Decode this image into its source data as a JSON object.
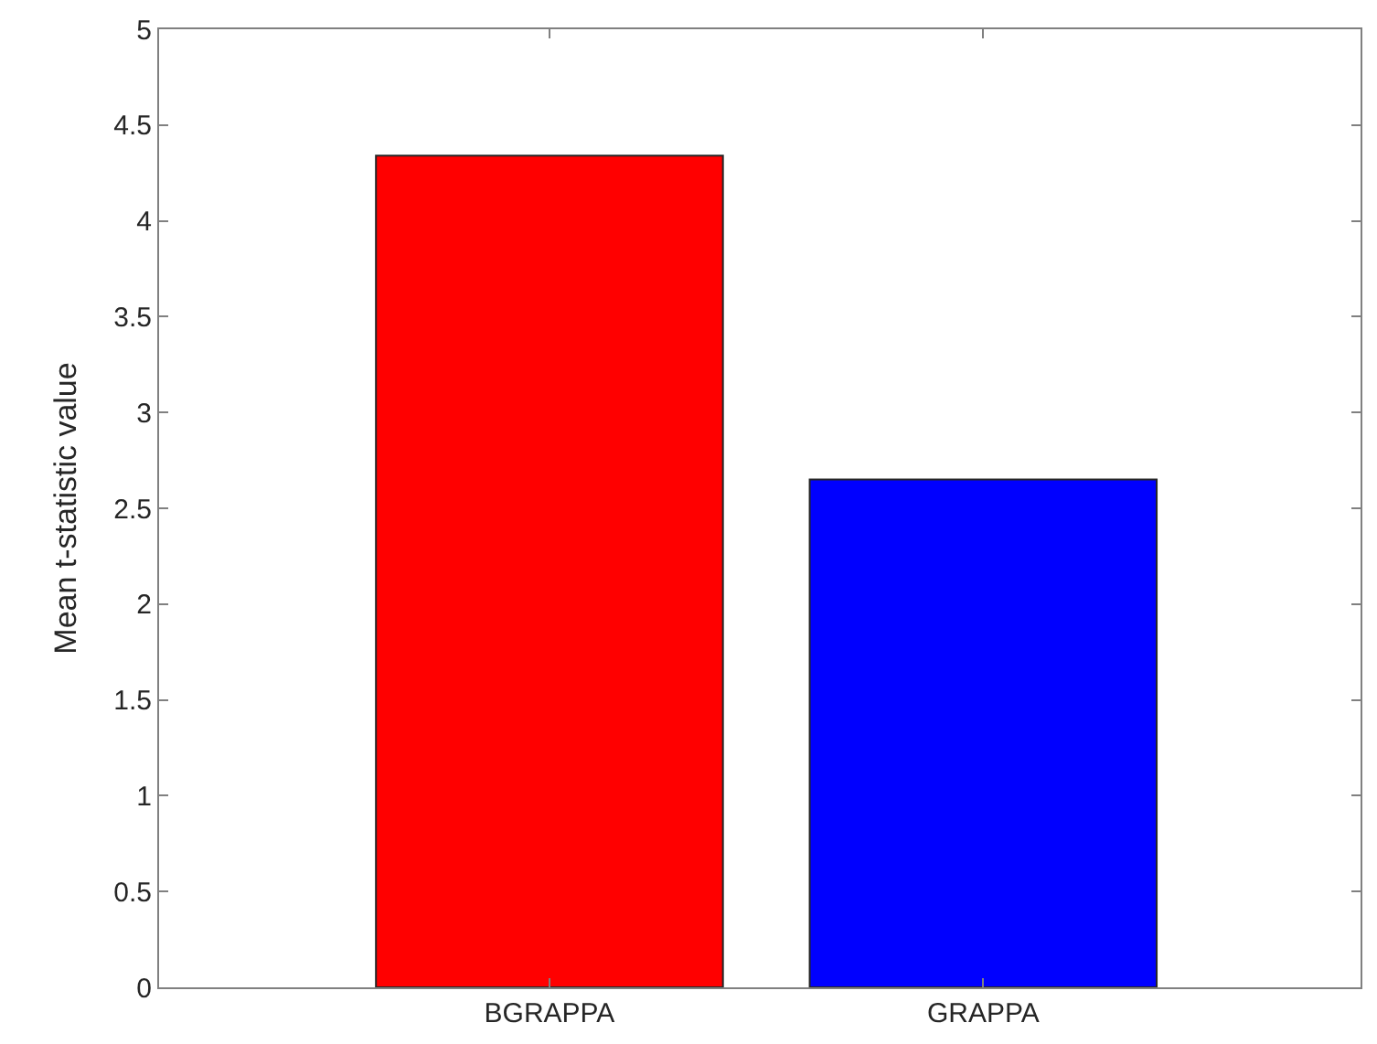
{
  "chart_data": {
    "type": "bar",
    "ylabel": "Mean t-statistic value",
    "categories": [
      "BGRAPPA",
      "GRAPPA"
    ],
    "values": [
      4.34,
      2.65
    ],
    "colors": [
      "#ff0000",
      "#0000ff"
    ],
    "ylim": [
      0,
      5
    ],
    "yticks": [
      0,
      0.5,
      1,
      1.5,
      2,
      2.5,
      3,
      3.5,
      4,
      4.5,
      5
    ]
  }
}
